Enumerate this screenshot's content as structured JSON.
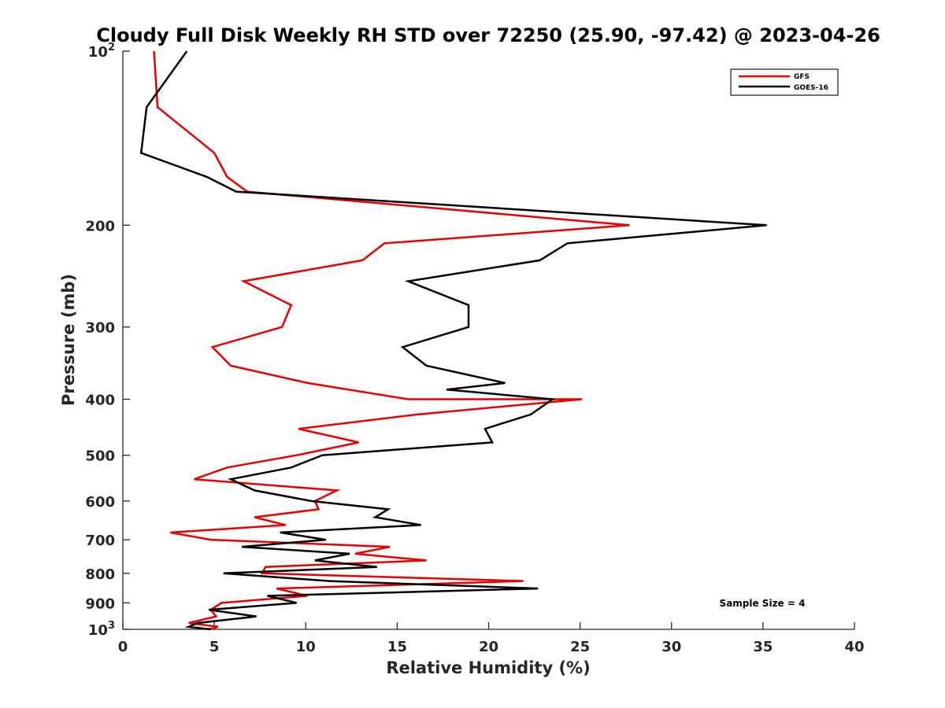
{
  "chart_data": {
    "type": "line",
    "title": "Cloudy Full Disk Weekly RH STD over 72250 (25.90, -97.42) @ 2023-04-26",
    "xlabel": "Relative Humidity (%)",
    "ylabel": "Pressure (mb)",
    "xlim": [
      0,
      40
    ],
    "ylim": [
      100,
      1000
    ],
    "y_scale": "log",
    "y_reversed": true,
    "grid": false,
    "legend_position": "top-right",
    "x_ticks": [
      0,
      5,
      10,
      15,
      20,
      25,
      30,
      35,
      40
    ],
    "x_tick_labels": [
      "0",
      "5",
      "10",
      "15",
      "20",
      "25",
      "30",
      "35",
      "40"
    ],
    "y_ticks": [
      100,
      200,
      300,
      400,
      500,
      600,
      700,
      800,
      900,
      1000
    ],
    "y_tick_labels": [
      {
        "base": "10",
        "exp": "2"
      },
      {
        "base": "200",
        "exp": ""
      },
      {
        "base": "300",
        "exp": ""
      },
      {
        "base": "400",
        "exp": ""
      },
      {
        "base": "500",
        "exp": ""
      },
      {
        "base": "600",
        "exp": ""
      },
      {
        "base": "700",
        "exp": ""
      },
      {
        "base": "800",
        "exp": ""
      },
      {
        "base": "900",
        "exp": ""
      },
      {
        "base": "10",
        "exp": "3"
      }
    ],
    "annotation": "Sample Size = 4",
    "series": [
      {
        "name": "GFS",
        "color": "#e60000",
        "points": [
          [
            1.7,
            100
          ],
          [
            1.9,
            125
          ],
          [
            5.0,
            150
          ],
          [
            5.7,
            165
          ],
          [
            6.8,
            175
          ],
          [
            27.7,
            200
          ],
          [
            14.3,
            215
          ],
          [
            13.1,
            230
          ],
          [
            6.6,
            250
          ],
          [
            9.2,
            275
          ],
          [
            8.7,
            300
          ],
          [
            4.9,
            325
          ],
          [
            5.9,
            350
          ],
          [
            10.1,
            375
          ],
          [
            15.6,
            400
          ],
          [
            25.1,
            400
          ],
          [
            16.1,
            425
          ],
          [
            9.6,
            450
          ],
          [
            12.9,
            475
          ],
          [
            9.5,
            500
          ],
          [
            5.7,
            525
          ],
          [
            3.9,
            550
          ],
          [
            11.7,
            575
          ],
          [
            10.5,
            600
          ],
          [
            10.7,
            620
          ],
          [
            7.2,
            640
          ],
          [
            8.9,
            660
          ],
          [
            2.6,
            680
          ],
          [
            4.8,
            700
          ],
          [
            14.6,
            720
          ],
          [
            12.7,
            740
          ],
          [
            16.6,
            760
          ],
          [
            7.8,
            780
          ],
          [
            7.6,
            800
          ],
          [
            21.9,
            825
          ],
          [
            8.4,
            850
          ],
          [
            10.1,
            875
          ],
          [
            5.4,
            900
          ],
          [
            4.8,
            925
          ],
          [
            5.1,
            950
          ],
          [
            3.6,
            975
          ],
          [
            5.2,
            990
          ],
          [
            4.7,
            1000
          ]
        ]
      },
      {
        "name": "GOES-16",
        "color": "#000000",
        "points": [
          [
            3.5,
            100
          ],
          [
            1.3,
            125
          ],
          [
            1.0,
            150
          ],
          [
            4.6,
            165
          ],
          [
            6.2,
            175
          ],
          [
            35.2,
            200
          ],
          [
            24.3,
            215
          ],
          [
            22.8,
            230
          ],
          [
            15.6,
            250
          ],
          [
            18.9,
            275
          ],
          [
            18.9,
            300
          ],
          [
            15.3,
            325
          ],
          [
            16.6,
            350
          ],
          [
            20.9,
            375
          ],
          [
            17.7,
            385
          ],
          [
            23.5,
            400
          ],
          [
            22.3,
            425
          ],
          [
            19.8,
            450
          ],
          [
            20.2,
            475
          ],
          [
            10.9,
            500
          ],
          [
            9.2,
            525
          ],
          [
            5.9,
            550
          ],
          [
            7.2,
            575
          ],
          [
            10.3,
            600
          ],
          [
            14.5,
            620
          ],
          [
            13.8,
            640
          ],
          [
            16.3,
            660
          ],
          [
            8.6,
            680
          ],
          [
            11.1,
            700
          ],
          [
            6.5,
            720
          ],
          [
            12.4,
            740
          ],
          [
            10.5,
            760
          ],
          [
            13.9,
            780
          ],
          [
            5.5,
            800
          ],
          [
            11.3,
            825
          ],
          [
            22.7,
            850
          ],
          [
            7.9,
            875
          ],
          [
            9.5,
            900
          ],
          [
            4.7,
            925
          ],
          [
            7.3,
            950
          ],
          [
            4.1,
            975
          ],
          [
            3.6,
            990
          ],
          [
            4.8,
            1000
          ]
        ]
      }
    ]
  }
}
